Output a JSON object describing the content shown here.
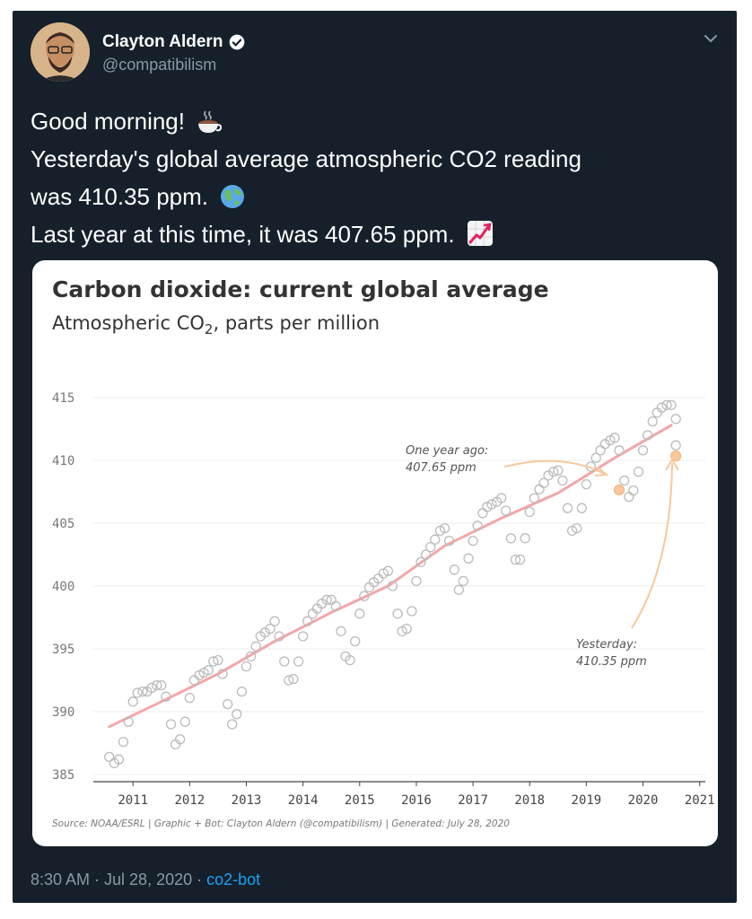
{
  "tweet": {
    "display_name": "Clayton Aldern",
    "handle": "@compatibilism",
    "text_lines": [
      "Good morning!",
      "Yesterday's global average atmospheric CO2 reading",
      "was 410.35 ppm.",
      "Last year at this time, it was 407.65 ppm."
    ],
    "timestamp": "8:30 AM · Jul 28, 2020 · ",
    "source": "co2-bot"
  },
  "icons": {
    "verified": "verified-badge-icon",
    "menu": "chevron-down-icon",
    "coffee": "hot-beverage-emoji",
    "globe": "globe-emoji",
    "chart": "chart-increasing-emoji"
  },
  "colors": {
    "background": "#15202b",
    "trend": "#f4a6a6",
    "annotation": "#f7c89c",
    "points": "#bbbbbb",
    "link": "#1da1f2"
  },
  "chart_data": {
    "type": "scatter",
    "title": "Carbon dioxide: current global average",
    "subtitle_main": "Atmospheric CO",
    "subtitle_sub": "2",
    "subtitle_tail": ", parts per million",
    "xlim": [
      2010.3,
      2021.1
    ],
    "ylim": [
      384.5,
      416.5
    ],
    "xticks": [
      2011,
      2012,
      2013,
      2014,
      2015,
      2016,
      2017,
      2018,
      2019,
      2020,
      2021
    ],
    "yticks": [
      385,
      390,
      395,
      400,
      405,
      410,
      415
    ],
    "grid": true,
    "trend": [
      [
        2010.58,
        388.8
      ],
      [
        2011.5,
        390.8
      ],
      [
        2012.5,
        393.0
      ],
      [
        2013.5,
        395.6
      ],
      [
        2014.5,
        397.9
      ],
      [
        2015.5,
        400.0
      ],
      [
        2016.5,
        403.2
      ],
      [
        2017.5,
        405.4
      ],
      [
        2018.5,
        407.4
      ],
      [
        2019.5,
        410.2
      ],
      [
        2020.5,
        412.8
      ]
    ],
    "points": [
      [
        2010.58,
        386.4
      ],
      [
        2010.67,
        385.9
      ],
      [
        2010.75,
        386.2
      ],
      [
        2010.83,
        387.6
      ],
      [
        2010.92,
        389.2
      ],
      [
        2011.0,
        390.8
      ],
      [
        2011.08,
        391.5
      ],
      [
        2011.17,
        391.6
      ],
      [
        2011.25,
        391.6
      ],
      [
        2011.33,
        391.9
      ],
      [
        2011.42,
        392.1
      ],
      [
        2011.5,
        392.1
      ],
      [
        2011.58,
        391.2
      ],
      [
        2011.67,
        389.0
      ],
      [
        2011.75,
        387.4
      ],
      [
        2011.83,
        387.8
      ],
      [
        2011.92,
        389.2
      ],
      [
        2012.0,
        391.1
      ],
      [
        2012.08,
        392.5
      ],
      [
        2012.17,
        392.9
      ],
      [
        2012.25,
        393.1
      ],
      [
        2012.33,
        393.3
      ],
      [
        2012.42,
        394.0
      ],
      [
        2012.5,
        394.1
      ],
      [
        2012.58,
        393.0
      ],
      [
        2012.67,
        390.6
      ],
      [
        2012.75,
        389.0
      ],
      [
        2012.83,
        389.8
      ],
      [
        2012.92,
        391.6
      ],
      [
        2013.0,
        393.6
      ],
      [
        2013.08,
        394.4
      ],
      [
        2013.17,
        395.2
      ],
      [
        2013.25,
        396.0
      ],
      [
        2013.33,
        396.3
      ],
      [
        2013.42,
        396.6
      ],
      [
        2013.5,
        397.2
      ],
      [
        2013.58,
        396.0
      ],
      [
        2013.67,
        394.0
      ],
      [
        2013.75,
        392.5
      ],
      [
        2013.83,
        392.6
      ],
      [
        2013.92,
        394.0
      ],
      [
        2014.0,
        396.0
      ],
      [
        2014.08,
        397.2
      ],
      [
        2014.17,
        397.8
      ],
      [
        2014.25,
        398.2
      ],
      [
        2014.33,
        398.6
      ],
      [
        2014.42,
        398.9
      ],
      [
        2014.5,
        398.9
      ],
      [
        2014.58,
        398.4
      ],
      [
        2014.67,
        396.4
      ],
      [
        2014.75,
        394.4
      ],
      [
        2014.83,
        394.1
      ],
      [
        2014.92,
        395.6
      ],
      [
        2015.0,
        397.8
      ],
      [
        2015.08,
        399.2
      ],
      [
        2015.17,
        399.9
      ],
      [
        2015.25,
        400.3
      ],
      [
        2015.33,
        400.6
      ],
      [
        2015.42,
        401.0
      ],
      [
        2015.5,
        401.2
      ],
      [
        2015.58,
        400.0
      ],
      [
        2015.67,
        397.8
      ],
      [
        2015.75,
        396.4
      ],
      [
        2015.83,
        396.6
      ],
      [
        2015.92,
        398.0
      ],
      [
        2016.0,
        400.4
      ],
      [
        2016.08,
        401.9
      ],
      [
        2016.17,
        402.5
      ],
      [
        2016.25,
        403.1
      ],
      [
        2016.33,
        403.7
      ],
      [
        2016.42,
        404.4
      ],
      [
        2016.5,
        404.6
      ],
      [
        2016.58,
        403.6
      ],
      [
        2016.67,
        401.3
      ],
      [
        2016.75,
        399.7
      ],
      [
        2016.83,
        400.4
      ],
      [
        2016.92,
        402.2
      ],
      [
        2017.0,
        403.6
      ],
      [
        2017.08,
        404.8
      ],
      [
        2017.17,
        405.8
      ],
      [
        2017.25,
        406.3
      ],
      [
        2017.33,
        406.5
      ],
      [
        2017.42,
        406.7
      ],
      [
        2017.5,
        407.0
      ],
      [
        2017.58,
        406.0
      ],
      [
        2017.67,
        403.8
      ],
      [
        2017.75,
        402.1
      ],
      [
        2017.83,
        402.1
      ],
      [
        2017.92,
        403.8
      ],
      [
        2018.0,
        405.9
      ],
      [
        2018.08,
        407.0
      ],
      [
        2018.17,
        407.7
      ],
      [
        2018.25,
        408.2
      ],
      [
        2018.33,
        408.8
      ],
      [
        2018.42,
        409.1
      ],
      [
        2018.5,
        409.2
      ],
      [
        2018.58,
        408.4
      ],
      [
        2018.67,
        406.2
      ],
      [
        2018.75,
        404.4
      ],
      [
        2018.83,
        404.6
      ],
      [
        2018.92,
        406.2
      ],
      [
        2019.0,
        408.1
      ],
      [
        2019.08,
        409.5
      ],
      [
        2019.17,
        410.2
      ],
      [
        2019.25,
        410.8
      ],
      [
        2019.33,
        411.3
      ],
      [
        2019.42,
        411.6
      ],
      [
        2019.5,
        411.8
      ],
      [
        2019.58,
        410.8
      ],
      [
        2019.67,
        408.4
      ],
      [
        2019.75,
        407.1
      ],
      [
        2019.83,
        407.6
      ],
      [
        2019.92,
        409.1
      ],
      [
        2020.0,
        410.8
      ],
      [
        2020.08,
        412.0
      ],
      [
        2020.17,
        413.1
      ],
      [
        2020.25,
        413.8
      ],
      [
        2020.33,
        414.2
      ],
      [
        2020.42,
        414.4
      ],
      [
        2020.5,
        414.4
      ],
      [
        2020.58,
        413.3
      ],
      [
        2020.58,
        411.2
      ]
    ],
    "highlights": [
      {
        "label": "one-year-ago",
        "x": 2019.58,
        "y": 407.65
      },
      {
        "label": "yesterday",
        "x": 2020.58,
        "y": 410.35
      }
    ],
    "annotations": {
      "one_year_ago_line1": "One year ago:",
      "one_year_ago_line2": "407.65 ppm",
      "yesterday_line1": "Yesterday:",
      "yesterday_line2": "410.35 ppm"
    },
    "source_line": "Source: NOAA/ESRL | Graphic + Bot: Clayton Aldern (@compatibilism) | Generated: July 28, 2020"
  }
}
